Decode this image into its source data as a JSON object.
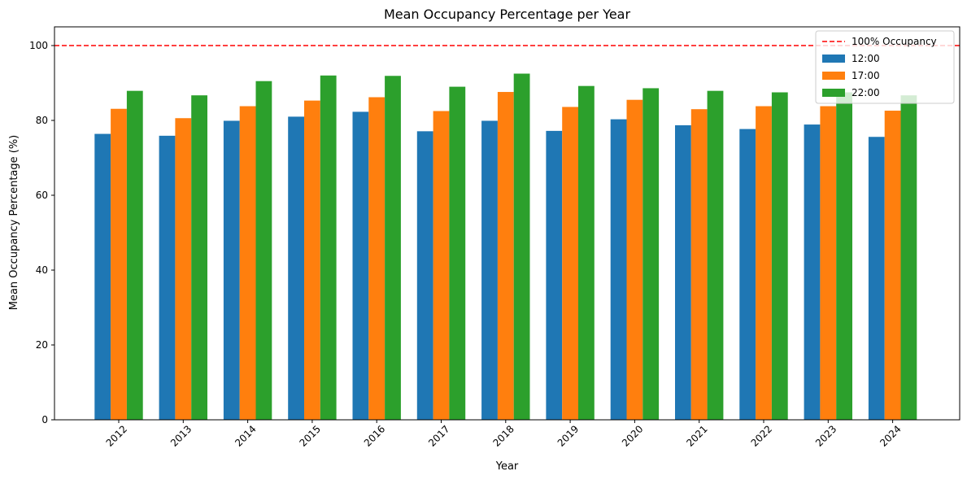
{
  "chart_data": {
    "type": "bar",
    "title": "Mean Occupancy Percentage per Year",
    "xlabel": "Year",
    "ylabel": "Mean Occupancy Percentage (%)",
    "ylim": [
      0,
      105
    ],
    "yticks": [
      0,
      20,
      40,
      60,
      80,
      100
    ],
    "categories": [
      "2012",
      "2013",
      "2014",
      "2015",
      "2016",
      "2017",
      "2018",
      "2019",
      "2020",
      "2021",
      "2022",
      "2023",
      "2024"
    ],
    "series": [
      {
        "name": "12:00",
        "color": "#1f77b4",
        "values": [
          76.4,
          75.9,
          79.9,
          81.0,
          82.3,
          77.1,
          79.9,
          77.2,
          80.3,
          78.7,
          77.7,
          78.9,
          75.6
        ]
      },
      {
        "name": "17:00",
        "color": "#ff7f0e",
        "values": [
          83.1,
          80.6,
          83.8,
          85.3,
          86.2,
          82.5,
          87.6,
          83.6,
          85.5,
          83.0,
          83.8,
          83.8,
          82.6
        ]
      },
      {
        "name": "22:00",
        "color": "#2ca02c",
        "values": [
          87.9,
          86.7,
          90.5,
          92.0,
          91.9,
          89.0,
          92.5,
          89.2,
          88.6,
          87.9,
          87.5,
          87.5,
          86.7
        ]
      }
    ],
    "reference_line": {
      "name": "100% Occupancy",
      "value": 100,
      "color": "#ff0000",
      "style": "dashed"
    },
    "legend_position": "top-right",
    "grid": false
  }
}
